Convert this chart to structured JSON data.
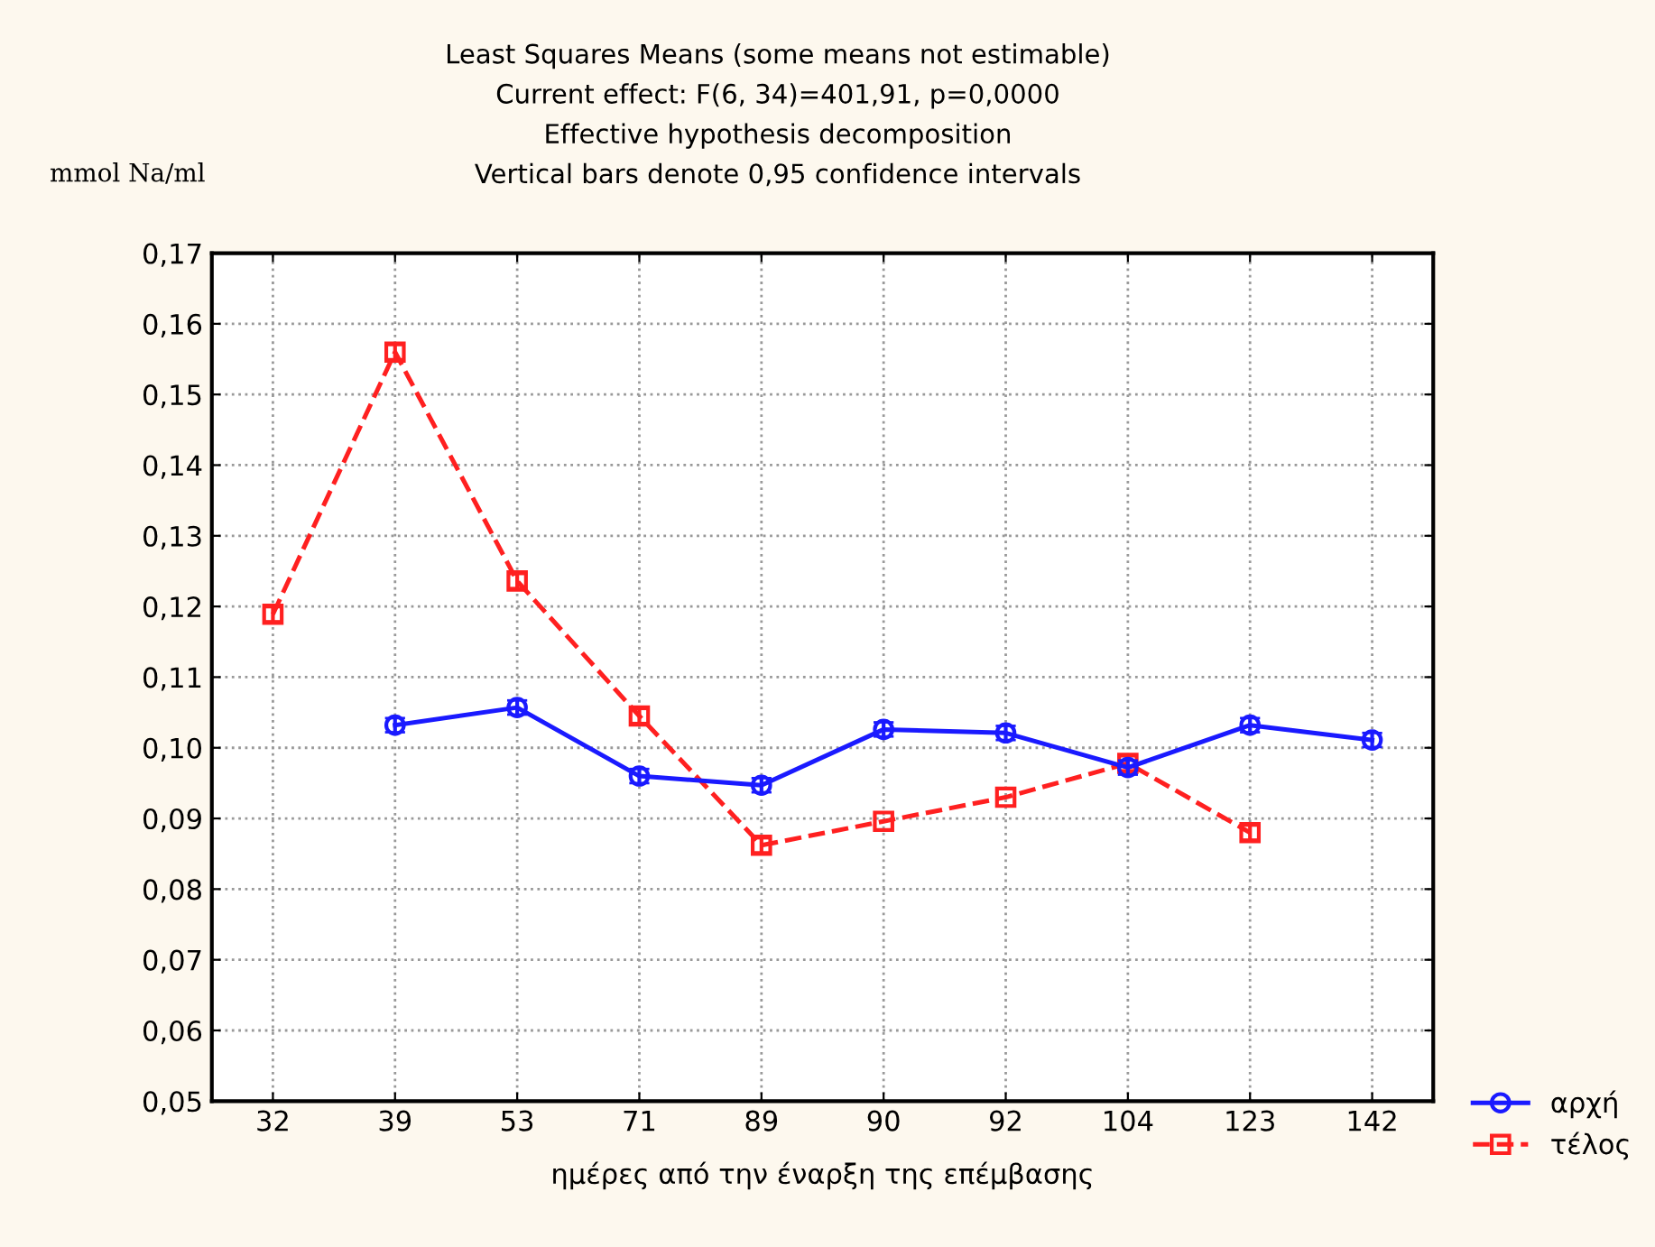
{
  "chart_data": {
    "type": "line",
    "title": "Least Squares Means (some means not estimable)",
    "subtitle": "Current effect: F(6, 34)=401,91, p=0,0000",
    "annotations": [
      "Effective hypothesis decomposition",
      "Vertical bars denote 0,95 confidence intervals"
    ],
    "xlabel": "ημέρες από την έναρξη της επέμβασης",
    "ylabel": "mmol Na/ml",
    "categories": [
      "32",
      "39",
      "53",
      "71",
      "89",
      "90",
      "92",
      "104",
      "123",
      "142"
    ],
    "series": [
      {
        "name": "αρχή",
        "color": "#1a1aff",
        "marker": "circle",
        "line_style": "solid",
        "values": [
          null,
          0.1032,
          0.1057,
          0.096,
          0.0947,
          0.1026,
          0.1021,
          0.0972,
          0.1032,
          0.1011
        ],
        "errors": [
          null,
          0.001,
          0.001,
          0.001,
          0.001,
          0.001,
          0.001,
          0.001,
          0.001,
          0.001
        ]
      },
      {
        "name": "τέλος",
        "color": "#ff2020",
        "marker": "square",
        "line_style": "dashed",
        "values": [
          0.1189,
          0.156,
          0.1236,
          0.1045,
          0.0862,
          0.0896,
          0.093,
          0.0978,
          0.088,
          null
        ],
        "errors": [
          0.001,
          0.001,
          0.001,
          0.001,
          0.001,
          null,
          null,
          0.001,
          0.001,
          null
        ]
      }
    ],
    "ylim": [
      0.05,
      0.17
    ],
    "yticks": [
      {
        "value": 0.05,
        "label": "0,05"
      },
      {
        "value": 0.06,
        "label": "0,06"
      },
      {
        "value": 0.07,
        "label": "0,07"
      },
      {
        "value": 0.08,
        "label": "0,08"
      },
      {
        "value": 0.09,
        "label": "0,09"
      },
      {
        "value": 0.1,
        "label": "0,10"
      },
      {
        "value": 0.11,
        "label": "0,11"
      },
      {
        "value": 0.12,
        "label": "0,12"
      },
      {
        "value": 0.13,
        "label": "0,13"
      },
      {
        "value": 0.14,
        "label": "0,14"
      },
      {
        "value": 0.15,
        "label": "0,15"
      },
      {
        "value": 0.16,
        "label": "0,16"
      },
      {
        "value": 0.17,
        "label": "0,17"
      }
    ],
    "grid": true,
    "legend": "bottom right"
  }
}
